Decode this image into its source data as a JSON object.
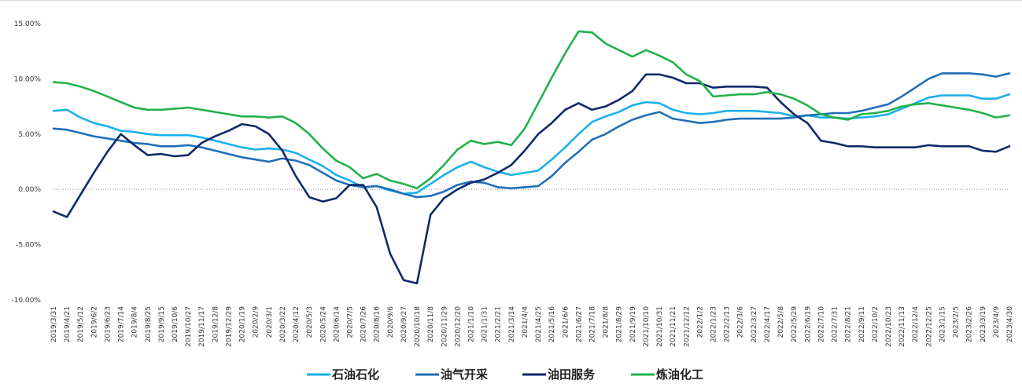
{
  "chart_data": {
    "type": "line",
    "title": "",
    "xlabel": "",
    "ylabel": "",
    "ylim": [
      -10,
      15
    ],
    "yticks": [
      15,
      10,
      5,
      0,
      -5,
      -10
    ],
    "ytick_labels": [
      "15.00%",
      "10.00%",
      "5.00%",
      "0.00%",
      "-5.00%",
      "-10.00%"
    ],
    "grid": false,
    "legend_position": "bottom",
    "categories": [
      "2019/3/31",
      "2019/4/21",
      "2019/5/12",
      "2019/6/2",
      "2019/6/23",
      "2019/7/14",
      "2019/8/4",
      "2019/8/25",
      "2019/9/15",
      "2019/10/6",
      "2019/10/27",
      "2019/11/17",
      "2019/12/8",
      "2019/12/29",
      "2020/1/19",
      "2020/2/9",
      "2020/3/1",
      "2020/3/22",
      "2020/4/12",
      "2020/5/3",
      "2020/5/24",
      "2020/6/14",
      "2020/7/5",
      "2020/7/26",
      "2020/8/16",
      "2020/9/6",
      "2020/9/27",
      "2020/10/18",
      "2020/11/8",
      "2020/11/29",
      "2020/12/20",
      "2021/1/10",
      "2021/1/31",
      "2021/2/21",
      "2021/3/14",
      "2021/4/4",
      "2021/4/25",
      "2021/5/16",
      "2021/6/6",
      "2021/6/27",
      "2021/7/18",
      "2021/8/8",
      "2021/8/29",
      "2021/9/19",
      "2021/10/10",
      "2021/10/31",
      "2021/11/21",
      "2021/12/12",
      "2022/1/2",
      "2022/1/23",
      "2022/2/13",
      "2022/3/6",
      "2022/3/27",
      "2022/4/17",
      "2022/5/8",
      "2022/5/29",
      "2022/6/19",
      "2022/7/10",
      "2022/7/31",
      "2022/8/21",
      "2022/9/11",
      "2022/10/2",
      "2022/10/23",
      "2022/11/13",
      "2022/12/4",
      "2022/12/25",
      "2023/1/15",
      "2023/2/5",
      "2023/2/26",
      "2023/3/19",
      "2023/4/9",
      "2023/4/30"
    ],
    "series": [
      {
        "name": "石油石化",
        "color": "#1ab0ec",
        "values": [
          7.1,
          7.2,
          6.5,
          6.0,
          5.7,
          5.3,
          5.2,
          5.0,
          4.9,
          4.9,
          4.9,
          4.7,
          4.4,
          4.1,
          3.8,
          3.6,
          3.7,
          3.6,
          3.3,
          2.7,
          2.1,
          1.3,
          0.8,
          0.2,
          0.3,
          -0.1,
          -0.4,
          -0.3,
          0.5,
          1.3,
          2.0,
          2.5,
          2.0,
          1.6,
          1.3,
          1.5,
          1.7,
          2.7,
          3.8,
          5.0,
          6.1,
          6.6,
          7.0,
          7.6,
          7.9,
          7.8,
          7.2,
          6.9,
          6.8,
          6.9,
          7.1,
          7.1,
          7.1,
          7.0,
          6.9,
          6.6,
          6.7,
          6.5,
          6.5,
          6.4,
          6.5,
          6.6,
          6.8,
          7.3,
          7.8,
          8.3,
          8.5,
          8.5,
          8.5,
          8.2,
          8.2,
          8.6
        ]
      },
      {
        "name": "油气开采",
        "color": "#1f6fb8",
        "values": [
          5.5,
          5.4,
          5.1,
          4.8,
          4.6,
          4.4,
          4.2,
          4.1,
          3.9,
          3.9,
          4.0,
          3.8,
          3.5,
          3.2,
          2.9,
          2.7,
          2.5,
          2.8,
          2.6,
          2.2,
          1.5,
          0.8,
          0.4,
          0.2,
          0.3,
          0.0,
          -0.4,
          -0.7,
          -0.6,
          -0.2,
          0.4,
          0.7,
          0.6,
          0.2,
          0.1,
          0.2,
          0.3,
          1.2,
          2.4,
          3.4,
          4.5,
          5.0,
          5.7,
          6.3,
          6.7,
          7.0,
          6.4,
          6.2,
          6.0,
          6.1,
          6.3,
          6.4,
          6.4,
          6.4,
          6.4,
          6.5,
          6.7,
          6.8,
          6.9,
          6.9,
          7.1,
          7.4,
          7.7,
          8.4,
          9.2,
          10.0,
          10.5,
          10.5,
          10.5,
          10.4,
          10.2,
          10.5
        ]
      },
      {
        "name": "油田服务",
        "color": "#0f2a6b",
        "values": [
          -2.0,
          -2.5,
          -0.5,
          1.5,
          3.4,
          5.0,
          4.0,
          3.1,
          3.2,
          3.0,
          3.1,
          4.2,
          4.8,
          5.3,
          5.9,
          5.7,
          5.0,
          3.5,
          1.2,
          -0.7,
          -1.1,
          -0.8,
          0.4,
          0.4,
          -1.6,
          -5.8,
          -8.2,
          -8.5,
          -2.3,
          -0.8,
          0.0,
          0.6,
          0.9,
          1.5,
          2.2,
          3.5,
          5.0,
          6.0,
          7.2,
          7.8,
          7.2,
          7.5,
          8.1,
          8.9,
          10.4,
          10.4,
          10.1,
          9.6,
          9.6,
          9.2,
          9.3,
          9.3,
          9.3,
          9.2,
          7.9,
          6.8,
          6.0,
          4.4,
          4.2,
          3.9,
          3.9,
          3.8,
          3.8,
          3.8,
          3.8,
          4.0,
          3.9,
          3.9,
          3.9,
          3.5,
          3.4,
          3.9
        ]
      },
      {
        "name": "炼油化工",
        "color": "#21b24b",
        "values": [
          9.7,
          9.6,
          9.3,
          8.9,
          8.4,
          7.9,
          7.4,
          7.2,
          7.2,
          7.3,
          7.4,
          7.2,
          7.0,
          6.8,
          6.6,
          6.6,
          6.5,
          6.6,
          6.0,
          5.0,
          3.7,
          2.6,
          2.0,
          1.0,
          1.4,
          0.8,
          0.5,
          0.1,
          1.0,
          2.2,
          3.6,
          4.4,
          4.1,
          4.3,
          4.0,
          5.5,
          7.8,
          10.1,
          12.3,
          14.3,
          14.2,
          13.2,
          12.6,
          12.0,
          12.6,
          12.1,
          11.5,
          10.4,
          9.8,
          8.4,
          8.5,
          8.6,
          8.6,
          8.8,
          8.6,
          8.2,
          7.6,
          6.8,
          6.5,
          6.3,
          6.8,
          6.9,
          7.1,
          7.5,
          7.7,
          7.8,
          7.6,
          7.4,
          7.2,
          6.9,
          6.5,
          6.7
        ]
      }
    ]
  }
}
